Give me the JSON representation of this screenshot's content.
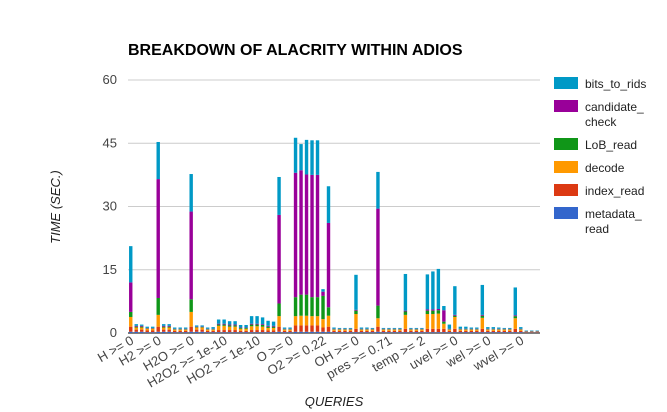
{
  "chart_data": {
    "type": "bar",
    "stacked": true,
    "title": "BREAKDOWN OF ALACRITY WITHIN ADIOS",
    "xlabel": "QUERIES",
    "ylabel": "TIME (SEC.)",
    "ylim": [
      0,
      60
    ],
    "yticks": [
      "0",
      "15",
      "30",
      "45",
      "60"
    ],
    "grid": true,
    "legend_position": "right",
    "xtick_labels": [
      {
        "label": "H >= 0",
        "at": 0
      },
      {
        "label": "H2 >= 0",
        "at": 5
      },
      {
        "label": "H2O >= 0",
        "at": 11
      },
      {
        "label": "H2O2 >= 1e-10",
        "at": 17
      },
      {
        "label": "HO2 >= 1e-10",
        "at": 23
      },
      {
        "label": "O >= 0",
        "at": 29
      },
      {
        "label": "O2 >= 0.22",
        "at": 35
      },
      {
        "label": "OH >= 0",
        "at": 41
      },
      {
        "label": "pres >= 0.71",
        "at": 47
      },
      {
        "label": "temp >= 2",
        "at": 53
      },
      {
        "label": "uvel >= 0",
        "at": 59
      },
      {
        "label": "wel >= 0",
        "at": 65
      },
      {
        "label": "wvel >= 0",
        "at": 71
      }
    ],
    "series": [
      {
        "name": "bits_to_rids",
        "color": "#0099c6",
        "values": [
          8.6,
          0.4,
          0.3,
          0.3,
          0.3,
          8.8,
          0.4,
          0.4,
          0.3,
          0.3,
          0.3,
          8.9,
          0.3,
          0.3,
          0.3,
          0.4,
          1.0,
          1.0,
          0.8,
          0.8,
          0.6,
          0.6,
          1.8,
          1.8,
          1.6,
          1.2,
          1.0,
          9.0,
          0.3,
          0.3,
          8.3,
          6.2,
          8.2,
          8.2,
          8.2,
          0.6,
          8.7,
          0.3,
          0.2,
          0.2,
          0.2,
          8.3,
          0.3,
          0.3,
          0.2,
          8.7,
          0.2,
          0.2,
          0.2,
          0.2,
          8.7,
          0.2,
          0.2,
          0.2,
          8.3,
          9.0,
          9.5,
          1.0,
          1.0,
          6.8,
          0.5,
          0.5,
          0.3,
          0.3,
          7.1,
          0.4,
          0.4,
          0.3,
          0.2,
          0.2,
          6.6,
          0.4,
          0.1,
          0.1,
          0.1
        ]
      },
      {
        "name": "candidate_check",
        "color": "#990099",
        "values": [
          7.0,
          0.2,
          0.2,
          0.1,
          0.1,
          28.2,
          0.2,
          0.2,
          0.1,
          0.1,
          0.1,
          20.8,
          0.1,
          0.1,
          0.1,
          0.1,
          0.2,
          0.2,
          0.2,
          0.2,
          0.1,
          0.1,
          0.2,
          0.2,
          0.2,
          0.2,
          0.2,
          21.0,
          0.1,
          0.1,
          29.5,
          29.5,
          28.5,
          29.0,
          29.0,
          1.0,
          20.0,
          0.1,
          0.1,
          0.1,
          0.1,
          0.2,
          0.1,
          0.1,
          0.1,
          23.0,
          0.1,
          0.1,
          0.1,
          0.1,
          0.2,
          0.1,
          0.1,
          0.1,
          0.3,
          0.3,
          0.3,
          2.7,
          0.1,
          0.2,
          0.1,
          0.1,
          0.1,
          0.1,
          0.2,
          0.1,
          0.1,
          0.1,
          0.1,
          0.1,
          0.2,
          0.1,
          0.1,
          0.1,
          0.1
        ]
      },
      {
        "name": "LoB_read",
        "color": "#109618",
        "values": [
          1.2,
          0.2,
          0.2,
          0.1,
          0.1,
          4.0,
          0.2,
          0.2,
          0.1,
          0.1,
          0.1,
          3.0,
          0.1,
          0.1,
          0.1,
          0.1,
          0.3,
          0.3,
          0.3,
          0.3,
          0.2,
          0.2,
          0.4,
          0.4,
          0.4,
          0.3,
          0.3,
          3.0,
          0.1,
          0.1,
          4.5,
          5.0,
          5.0,
          4.5,
          4.5,
          5.5,
          2.0,
          0.1,
          0.1,
          0.1,
          0.1,
          0.8,
          0.1,
          0.1,
          0.1,
          3.0,
          0.1,
          0.1,
          0.1,
          0.1,
          0.8,
          0.1,
          0.1,
          0.1,
          0.8,
          0.8,
          0.8,
          0.5,
          0.1,
          0.3,
          0.1,
          0.1,
          0.1,
          0.1,
          0.5,
          0.1,
          0.1,
          0.1,
          0.1,
          0.1,
          0.5,
          0.1,
          0.1,
          0.1,
          0.1
        ]
      },
      {
        "name": "decode",
        "color": "#ff9900",
        "values": [
          2.3,
          0.5,
          0.5,
          0.4,
          0.4,
          2.8,
          0.5,
          0.5,
          0.3,
          0.3,
          0.3,
          3.5,
          0.5,
          0.5,
          0.3,
          0.3,
          1.0,
          1.0,
          0.8,
          0.8,
          0.5,
          0.5,
          0.9,
          0.9,
          0.8,
          0.6,
          0.6,
          2.5,
          0.3,
          0.3,
          2.2,
          2.3,
          2.3,
          2.2,
          2.2,
          2.0,
          2.6,
          0.3,
          0.3,
          0.3,
          0.3,
          3.5,
          0.3,
          0.3,
          0.3,
          2.0,
          0.3,
          0.3,
          0.3,
          0.3,
          3.3,
          0.3,
          0.3,
          0.3,
          3.5,
          3.5,
          3.6,
          1.2,
          0.3,
          2.8,
          0.3,
          0.3,
          0.3,
          0.3,
          2.6,
          0.3,
          0.3,
          0.3,
          0.3,
          0.3,
          2.5,
          0.3,
          0.1,
          0.1,
          0.1
        ]
      },
      {
        "name": "index_read",
        "color": "#dc3912",
        "values": [
          1.2,
          0.5,
          0.5,
          0.4,
          0.4,
          1.2,
          0.5,
          0.5,
          0.3,
          0.3,
          0.3,
          1.2,
          0.5,
          0.5,
          0.3,
          0.3,
          0.5,
          0.5,
          0.5,
          0.5,
          0.3,
          0.3,
          0.5,
          0.5,
          0.5,
          0.4,
          0.4,
          1.2,
          0.3,
          0.3,
          1.5,
          1.5,
          1.5,
          1.5,
          1.5,
          1.0,
          1.2,
          0.3,
          0.3,
          0.3,
          0.3,
          0.8,
          0.3,
          0.3,
          0.3,
          1.2,
          0.3,
          0.3,
          0.3,
          0.3,
          0.8,
          0.3,
          0.3,
          0.3,
          0.8,
          0.8,
          0.8,
          0.8,
          0.3,
          0.8,
          0.3,
          0.3,
          0.3,
          0.3,
          0.8,
          0.3,
          0.3,
          0.3,
          0.3,
          0.3,
          0.8,
          0.3,
          0.1,
          0.1,
          0.1
        ]
      },
      {
        "name": "metadata_read",
        "color": "#3366cc",
        "values": [
          0.3,
          0.3,
          0.3,
          0.2,
          0.2,
          0.3,
          0.3,
          0.3,
          0.2,
          0.2,
          0.2,
          0.3,
          0.3,
          0.3,
          0.2,
          0.2,
          0.2,
          0.2,
          0.2,
          0.2,
          0.2,
          0.2,
          0.2,
          0.2,
          0.2,
          0.2,
          0.2,
          0.3,
          0.2,
          0.2,
          0.3,
          0.3,
          0.3,
          0.3,
          0.3,
          0.3,
          0.3,
          0.2,
          0.2,
          0.2,
          0.2,
          0.2,
          0.2,
          0.2,
          0.2,
          0.3,
          0.2,
          0.2,
          0.2,
          0.2,
          0.2,
          0.2,
          0.2,
          0.2,
          0.2,
          0.2,
          0.2,
          0.2,
          0.2,
          0.2,
          0.2,
          0.2,
          0.2,
          0.2,
          0.2,
          0.2,
          0.2,
          0.2,
          0.2,
          0.2,
          0.2,
          0.2,
          0.1,
          0.1,
          0.1
        ]
      }
    ],
    "legend": [
      {
        "lines": [
          "bits_to_rids"
        ],
        "color": "#0099c6"
      },
      {
        "lines": [
          "candidate_",
          "check"
        ],
        "color": "#990099"
      },
      {
        "lines": [
          "LoB_read"
        ],
        "color": "#109618"
      },
      {
        "lines": [
          "decode"
        ],
        "color": "#ff9900"
      },
      {
        "lines": [
          "index_read"
        ],
        "color": "#dc3912"
      },
      {
        "lines": [
          "metadata_",
          "read"
        ],
        "color": "#3366cc"
      }
    ]
  }
}
